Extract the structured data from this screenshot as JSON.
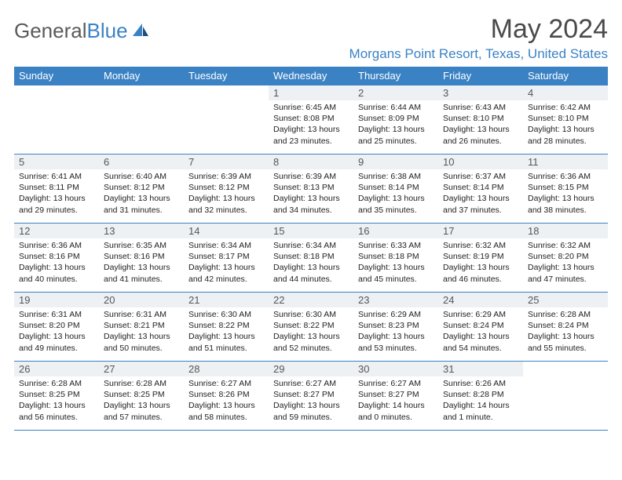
{
  "brand": {
    "part1": "General",
    "part2": "Blue"
  },
  "title": "May 2024",
  "location": "Morgans Point Resort, Texas, United States",
  "columns": [
    "Sunday",
    "Monday",
    "Tuesday",
    "Wednesday",
    "Thursday",
    "Friday",
    "Saturday"
  ],
  "colors": {
    "accent": "#3b82c4",
    "header_text": "#ffffff",
    "daynum_bg": "#eef1f4",
    "title_text": "#4a4a4a",
    "logo_gray": "#5a5a5a"
  },
  "weeks": [
    [
      null,
      null,
      null,
      {
        "n": "1",
        "sr": "6:45 AM",
        "ss": "8:08 PM",
        "dl": "13 hours and 23 minutes."
      },
      {
        "n": "2",
        "sr": "6:44 AM",
        "ss": "8:09 PM",
        "dl": "13 hours and 25 minutes."
      },
      {
        "n": "3",
        "sr": "6:43 AM",
        "ss": "8:10 PM",
        "dl": "13 hours and 26 minutes."
      },
      {
        "n": "4",
        "sr": "6:42 AM",
        "ss": "8:10 PM",
        "dl": "13 hours and 28 minutes."
      }
    ],
    [
      {
        "n": "5",
        "sr": "6:41 AM",
        "ss": "8:11 PM",
        "dl": "13 hours and 29 minutes."
      },
      {
        "n": "6",
        "sr": "6:40 AM",
        "ss": "8:12 PM",
        "dl": "13 hours and 31 minutes."
      },
      {
        "n": "7",
        "sr": "6:39 AM",
        "ss": "8:12 PM",
        "dl": "13 hours and 32 minutes."
      },
      {
        "n": "8",
        "sr": "6:39 AM",
        "ss": "8:13 PM",
        "dl": "13 hours and 34 minutes."
      },
      {
        "n": "9",
        "sr": "6:38 AM",
        "ss": "8:14 PM",
        "dl": "13 hours and 35 minutes."
      },
      {
        "n": "10",
        "sr": "6:37 AM",
        "ss": "8:14 PM",
        "dl": "13 hours and 37 minutes."
      },
      {
        "n": "11",
        "sr": "6:36 AM",
        "ss": "8:15 PM",
        "dl": "13 hours and 38 minutes."
      }
    ],
    [
      {
        "n": "12",
        "sr": "6:36 AM",
        "ss": "8:16 PM",
        "dl": "13 hours and 40 minutes."
      },
      {
        "n": "13",
        "sr": "6:35 AM",
        "ss": "8:16 PM",
        "dl": "13 hours and 41 minutes."
      },
      {
        "n": "14",
        "sr": "6:34 AM",
        "ss": "8:17 PM",
        "dl": "13 hours and 42 minutes."
      },
      {
        "n": "15",
        "sr": "6:34 AM",
        "ss": "8:18 PM",
        "dl": "13 hours and 44 minutes."
      },
      {
        "n": "16",
        "sr": "6:33 AM",
        "ss": "8:18 PM",
        "dl": "13 hours and 45 minutes."
      },
      {
        "n": "17",
        "sr": "6:32 AM",
        "ss": "8:19 PM",
        "dl": "13 hours and 46 minutes."
      },
      {
        "n": "18",
        "sr": "6:32 AM",
        "ss": "8:20 PM",
        "dl": "13 hours and 47 minutes."
      }
    ],
    [
      {
        "n": "19",
        "sr": "6:31 AM",
        "ss": "8:20 PM",
        "dl": "13 hours and 49 minutes."
      },
      {
        "n": "20",
        "sr": "6:31 AM",
        "ss": "8:21 PM",
        "dl": "13 hours and 50 minutes."
      },
      {
        "n": "21",
        "sr": "6:30 AM",
        "ss": "8:22 PM",
        "dl": "13 hours and 51 minutes."
      },
      {
        "n": "22",
        "sr": "6:30 AM",
        "ss": "8:22 PM",
        "dl": "13 hours and 52 minutes."
      },
      {
        "n": "23",
        "sr": "6:29 AM",
        "ss": "8:23 PM",
        "dl": "13 hours and 53 minutes."
      },
      {
        "n": "24",
        "sr": "6:29 AM",
        "ss": "8:24 PM",
        "dl": "13 hours and 54 minutes."
      },
      {
        "n": "25",
        "sr": "6:28 AM",
        "ss": "8:24 PM",
        "dl": "13 hours and 55 minutes."
      }
    ],
    [
      {
        "n": "26",
        "sr": "6:28 AM",
        "ss": "8:25 PM",
        "dl": "13 hours and 56 minutes."
      },
      {
        "n": "27",
        "sr": "6:28 AM",
        "ss": "8:25 PM",
        "dl": "13 hours and 57 minutes."
      },
      {
        "n": "28",
        "sr": "6:27 AM",
        "ss": "8:26 PM",
        "dl": "13 hours and 58 minutes."
      },
      {
        "n": "29",
        "sr": "6:27 AM",
        "ss": "8:27 PM",
        "dl": "13 hours and 59 minutes."
      },
      {
        "n": "30",
        "sr": "6:27 AM",
        "ss": "8:27 PM",
        "dl": "14 hours and 0 minutes."
      },
      {
        "n": "31",
        "sr": "6:26 AM",
        "ss": "8:28 PM",
        "dl": "14 hours and 1 minute."
      },
      null
    ]
  ]
}
